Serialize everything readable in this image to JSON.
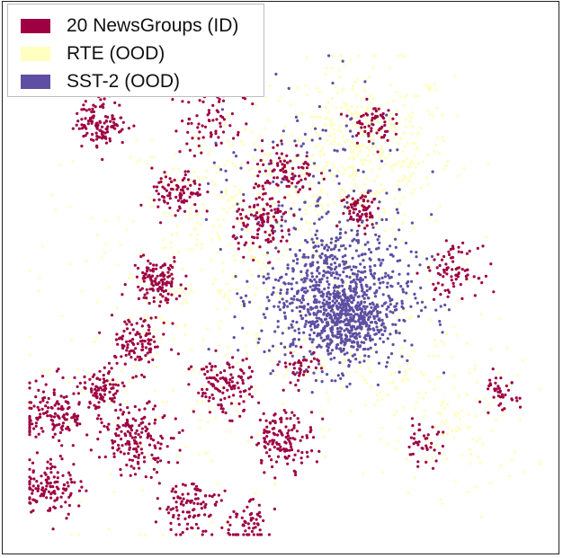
{
  "chart_data": {
    "type": "scatter",
    "title": "",
    "xlabel": "",
    "ylabel": "",
    "axes_visible": false,
    "grid": false,
    "legend_position": "top-left",
    "point_counts_note": "values are representative 2D embedding coordinates (no ticks printed)",
    "series": [
      {
        "name": "20 NewsGroups (ID)",
        "color": "#9e0142",
        "clusters": [
          {
            "center": [
              0.14,
              0.86
            ],
            "n": 120,
            "spread": 0.025
          },
          {
            "center": [
              0.35,
              0.86
            ],
            "n": 60,
            "spread": 0.035
          },
          {
            "center": [
              0.67,
              0.86
            ],
            "n": 60,
            "spread": 0.02
          },
          {
            "center": [
              0.5,
              0.76
            ],
            "n": 90,
            "spread": 0.03
          },
          {
            "center": [
              0.29,
              0.71
            ],
            "n": 90,
            "spread": 0.025
          },
          {
            "center": [
              0.46,
              0.65
            ],
            "n": 110,
            "spread": 0.03
          },
          {
            "center": [
              0.25,
              0.53
            ],
            "n": 120,
            "spread": 0.025
          },
          {
            "center": [
              0.83,
              0.55
            ],
            "n": 80,
            "spread": 0.025
          },
          {
            "center": [
              0.21,
              0.4
            ],
            "n": 110,
            "spread": 0.03
          },
          {
            "center": [
              0.14,
              0.3
            ],
            "n": 80,
            "spread": 0.02
          },
          {
            "center": [
              0.05,
              0.25
            ],
            "n": 150,
            "spread": 0.035
          },
          {
            "center": [
              0.38,
              0.31
            ],
            "n": 120,
            "spread": 0.03
          },
          {
            "center": [
              0.21,
              0.2
            ],
            "n": 160,
            "spread": 0.035
          },
          {
            "center": [
              0.5,
              0.2
            ],
            "n": 130,
            "spread": 0.03
          },
          {
            "center": [
              0.04,
              0.1
            ],
            "n": 120,
            "spread": 0.03
          },
          {
            "center": [
              0.31,
              0.06
            ],
            "n": 100,
            "spread": 0.03
          },
          {
            "center": [
              0.42,
              0.02
            ],
            "n": 60,
            "spread": 0.025
          },
          {
            "center": [
              0.92,
              0.29
            ],
            "n": 40,
            "spread": 0.02
          },
          {
            "center": [
              0.77,
              0.19
            ],
            "n": 40,
            "spread": 0.02
          },
          {
            "center": [
              0.53,
              0.35
            ],
            "n": 40,
            "spread": 0.02
          },
          {
            "center": [
              0.39,
              0.95
            ],
            "n": 60,
            "spread": 0.025
          },
          {
            "center": [
              0.65,
              0.68
            ],
            "n": 70,
            "spread": 0.02
          }
        ]
      },
      {
        "name": "RTE (OOD)",
        "color": "#ffffbf",
        "clusters": [
          {
            "center": [
              0.65,
              0.8
            ],
            "n": 450,
            "spread": 0.09
          },
          {
            "center": [
              0.4,
              0.65
            ],
            "n": 300,
            "spread": 0.12
          },
          {
            "center": [
              0.7,
              0.35
            ],
            "n": 150,
            "spread": 0.1
          },
          {
            "center": [
              0.85,
              0.22
            ],
            "n": 80,
            "spread": 0.07
          },
          {
            "center": [
              0.3,
              0.35
            ],
            "n": 160,
            "spread": 0.16
          }
        ]
      },
      {
        "name": "SST-2 (OOD)",
        "color": "#5e4fa2",
        "clusters": [
          {
            "center": [
              0.6,
              0.5
            ],
            "n": 800,
            "spread": 0.075
          },
          {
            "center": [
              0.62,
              0.44
            ],
            "n": 300,
            "spread": 0.035
          },
          {
            "center": [
              0.55,
              0.75
            ],
            "n": 120,
            "spread": 0.1
          }
        ]
      }
    ]
  },
  "legend": {
    "items": [
      {
        "label": "20 NewsGroups (ID)",
        "color": "#9e0142"
      },
      {
        "label": "RTE (OOD)",
        "color": "#ffffbf"
      },
      {
        "label": "SST-2 (OOD)",
        "color": "#5e4fa2"
      }
    ]
  }
}
